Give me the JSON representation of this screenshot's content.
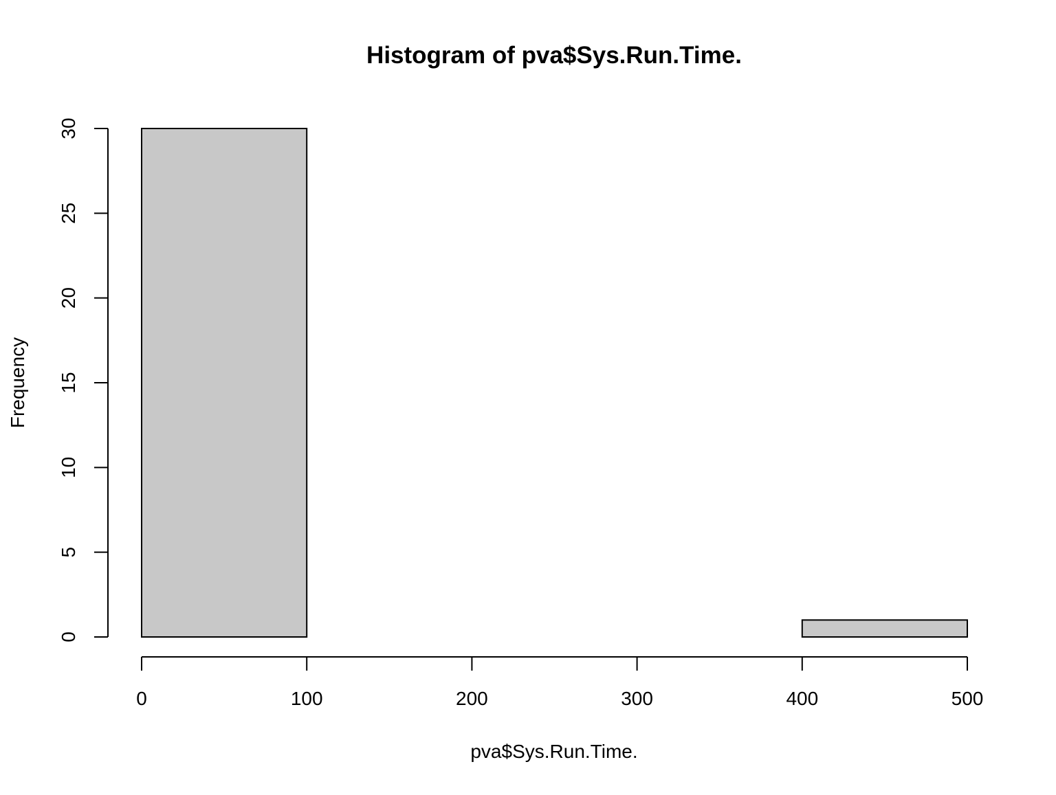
{
  "chart_data": {
    "type": "bar",
    "title": "Histogram of pva$Sys.Run.Time.",
    "xlabel": "pva$Sys.Run.Time.",
    "ylabel": "Frequency",
    "bins": [
      {
        "start": 0,
        "end": 100,
        "count": 30
      },
      {
        "start": 100,
        "end": 200,
        "count": 0
      },
      {
        "start": 200,
        "end": 300,
        "count": 0
      },
      {
        "start": 300,
        "end": 400,
        "count": 0
      },
      {
        "start": 400,
        "end": 500,
        "count": 1
      }
    ],
    "xlim": [
      0,
      500
    ],
    "ylim": [
      0,
      30
    ],
    "x_ticks": [
      0,
      100,
      200,
      300,
      400,
      500
    ],
    "y_ticks": [
      0,
      5,
      10,
      15,
      20,
      25,
      30
    ],
    "grid": false,
    "bar_fill": "#c8c8c8",
    "bar_stroke": "#000000"
  }
}
